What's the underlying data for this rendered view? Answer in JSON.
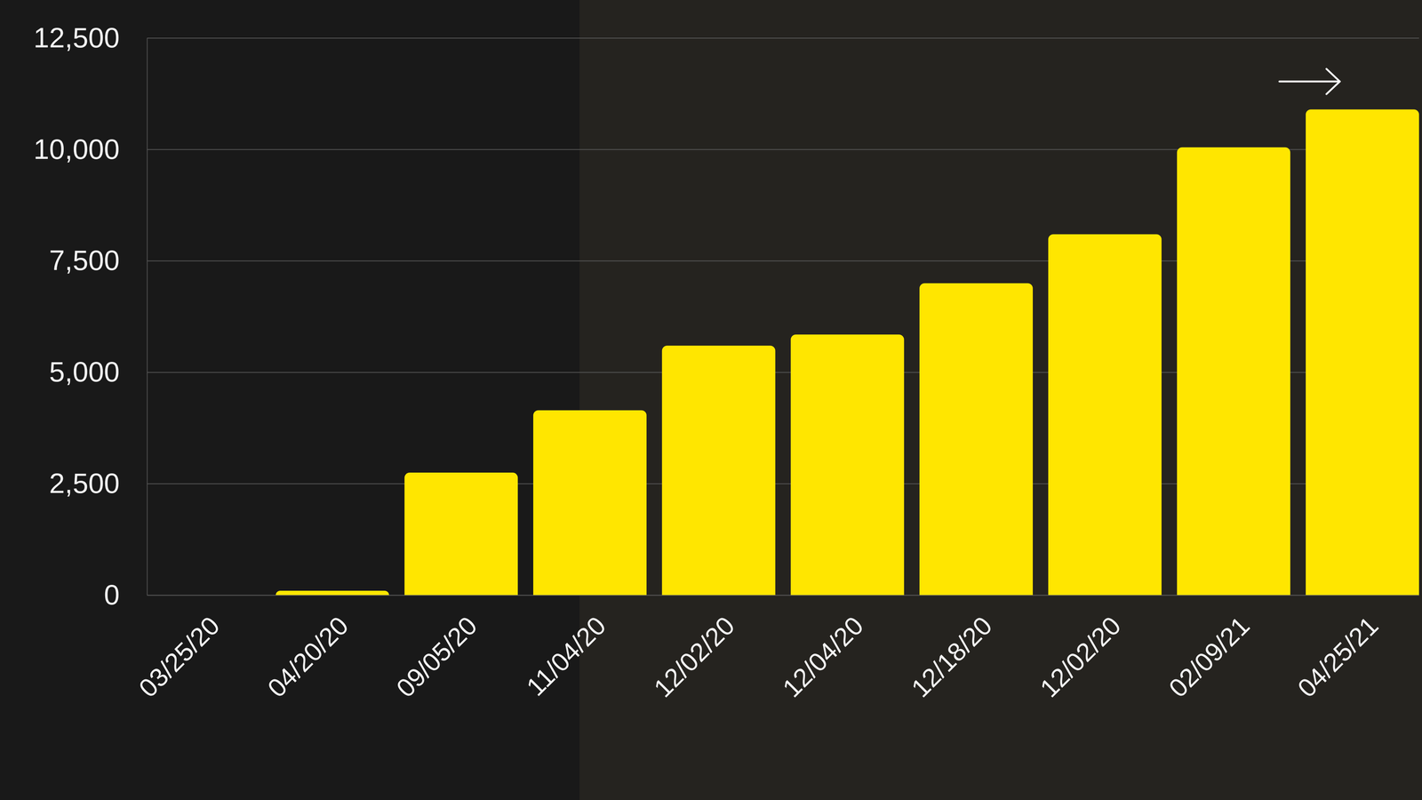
{
  "chart_data": {
    "type": "bar",
    "categories": [
      "03/25/20",
      "04/20/20",
      "09/05/20",
      "11/04/20",
      "12/02/20",
      "12/04/20",
      "12/18/20",
      "12/02/20",
      "02/09/21",
      "04/25/21"
    ],
    "values": [
      0,
      100,
      2750,
      4150,
      5600,
      5850,
      7000,
      8100,
      10050,
      10900
    ],
    "color": "#ffe600",
    "ylim": [
      0,
      12500
    ],
    "yticks": [
      0,
      {
        "value": 2500,
        "label": "2,500"
      },
      {
        "value": 5000,
        "label": "5,000"
      },
      {
        "value": 7500,
        "label": "7,500"
      },
      {
        "value": 10000,
        "label": "10,000"
      },
      {
        "value": 12500,
        "label": "12,500"
      }
    ],
    "grid": true
  }
}
